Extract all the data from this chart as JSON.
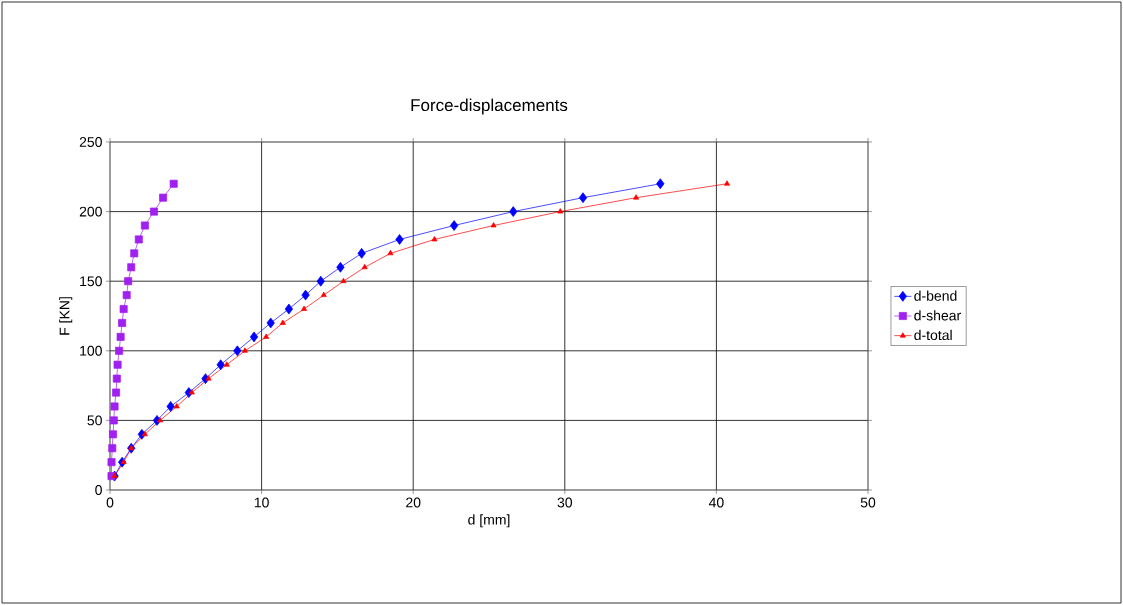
{
  "chart_data": {
    "type": "line",
    "title": "Force-displacements",
    "xlabel": "d [mm]",
    "ylabel": "F [KN]",
    "xlim": [
      0,
      50
    ],
    "xticks": [
      0,
      10,
      20,
      30,
      40,
      50
    ],
    "ylim": [
      0,
      250
    ],
    "yticks": [
      0,
      50,
      100,
      150,
      200,
      250
    ],
    "grid": true,
    "legend": "right",
    "series": [
      {
        "name": "d-bend",
        "color": "#0000ff",
        "marker": "diamond",
        "x": [
          0.3,
          0.8,
          1.4,
          2.1,
          3.1,
          4.0,
          5.2,
          6.3,
          7.3,
          8.4,
          9.5,
          10.6,
          11.8,
          12.9,
          13.9,
          15.2,
          16.6,
          19.1,
          22.7,
          26.6,
          31.2,
          36.3
        ],
        "values": [
          10,
          20,
          30,
          40,
          50,
          60,
          70,
          80,
          90,
          100,
          110,
          120,
          130,
          140,
          150,
          160,
          170,
          180,
          190,
          200,
          210,
          220
        ]
      },
      {
        "name": "d-shear",
        "color": "#a020f0",
        "marker": "square",
        "x": [
          0.1,
          0.1,
          0.15,
          0.2,
          0.25,
          0.3,
          0.4,
          0.45,
          0.5,
          0.6,
          0.7,
          0.8,
          0.9,
          1.1,
          1.2,
          1.4,
          1.6,
          1.9,
          2.3,
          2.9,
          3.5,
          4.2
        ],
        "values": [
          10,
          20,
          30,
          40,
          50,
          60,
          70,
          80,
          90,
          100,
          110,
          120,
          130,
          140,
          150,
          160,
          170,
          180,
          190,
          200,
          210,
          220
        ]
      },
      {
        "name": "d-total",
        "color": "#ff0000",
        "marker": "triangle",
        "x": [
          0.3,
          0.9,
          1.4,
          2.3,
          3.3,
          4.4,
          5.4,
          6.5,
          7.7,
          8.9,
          10.3,
          11.4,
          12.8,
          14.1,
          15.4,
          16.8,
          18.5,
          21.4,
          25.3,
          29.7,
          34.7,
          40.7
        ],
        "values": [
          10,
          20,
          30,
          40,
          50,
          60,
          70,
          80,
          90,
          100,
          110,
          120,
          130,
          140,
          150,
          160,
          170,
          180,
          190,
          200,
          210,
          220
        ]
      }
    ]
  }
}
